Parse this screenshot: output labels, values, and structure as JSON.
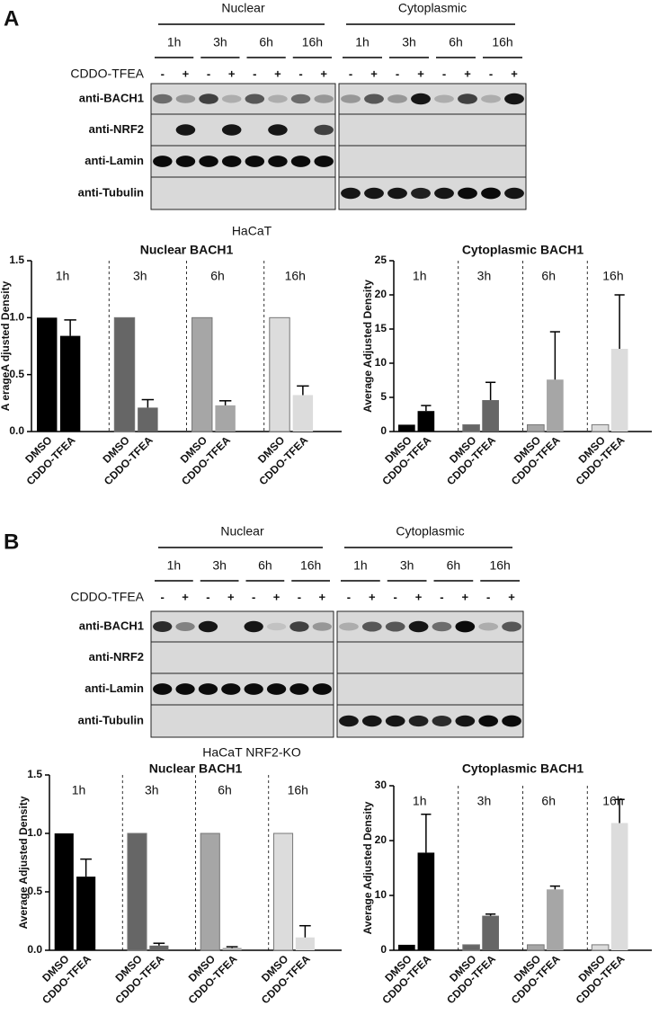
{
  "panels": [
    {
      "label": "A",
      "treatment": "CDDO-TFEA",
      "cell_line": "HaCaT",
      "sections": [
        {
          "name": "Nuclear",
          "times": [
            "1h",
            "3h",
            "6h",
            "16h"
          ]
        },
        {
          "name": "Cytoplasmic",
          "times": [
            "1h",
            "3h",
            "6h",
            "16h"
          ]
        }
      ],
      "signs": [
        "-",
        "+",
        "-",
        "+",
        "-",
        "+",
        "-",
        "+"
      ],
      "rows": [
        "anti-BACH1",
        "anti-NRF2",
        "anti-Lamin",
        "anti-Tubulin"
      ]
    },
    {
      "label": "B",
      "treatment": "CDDO-TFEA",
      "cell_line": "HaCaT NRF2-KO",
      "sections": [
        {
          "name": "Nuclear",
          "times": [
            "1h",
            "3h",
            "6h",
            "16h"
          ]
        },
        {
          "name": "Cytoplasmic",
          "times": [
            "1h",
            "3h",
            "6h",
            "16h"
          ]
        }
      ],
      "signs": [
        "-",
        "+",
        "-",
        "+",
        "-",
        "+",
        "-",
        "+"
      ],
      "rows": [
        "anti-BACH1",
        "anti-NRF2",
        "anti-Lamin",
        "anti-Tubulin"
      ]
    }
  ],
  "chart_data": [
    {
      "type": "bar",
      "title": "Nuclear BACH1",
      "y_label": "A erageA djusted Density",
      "groups": [
        "1h",
        "3h",
        "6h",
        "16h"
      ],
      "categories": [
        "DMSO",
        "CDDO-TFEA",
        "DMSO",
        "CDDO-TFEA",
        "DMSO",
        "CDDO-TFEA",
        "DMSO",
        "CDDO-TFEA"
      ],
      "values": [
        1,
        0.84,
        1,
        0.21,
        1,
        0.23,
        1,
        0.32
      ],
      "errors": [
        null,
        0.14,
        null,
        0.07,
        null,
        0.04,
        null,
        0.08
      ],
      "colors": [
        "#000000",
        "#000000",
        "#666666",
        "#666666",
        "#a6a6a6",
        "#a6a6a6",
        "#dcdcdc",
        "#dcdcdc"
      ],
      "ylim": [
        0,
        1.5
      ],
      "yticks": [
        {
          "value": 0,
          "label": "0.0"
        },
        0.5,
        {
          "value": 1,
          "label": "1.0"
        },
        1.5
      ]
    },
    {
      "type": "bar",
      "title": "Cytoplasmic BACH1",
      "y_label": "Average Adjusted Density",
      "groups": [
        "1h",
        "3h",
        "6h",
        "16h"
      ],
      "categories": [
        "DMSO",
        "CDDO-TFEA",
        "DMSO",
        "CDDO-TFEA",
        "DMSO",
        "CDDO-TFEA",
        "DMSO",
        "CDDO-TFEA"
      ],
      "values": [
        1,
        3,
        1,
        4.6,
        1,
        7.6,
        1,
        12.1
      ],
      "errors": [
        null,
        0.8,
        null,
        2.6,
        null,
        7.0,
        null,
        7.9
      ],
      "colors": [
        "#000000",
        "#000000",
        "#666666",
        "#666666",
        "#a6a6a6",
        "#a6a6a6",
        "#dcdcdc",
        "#dcdcdc"
      ],
      "ylim": [
        0,
        25
      ],
      "yticks": [
        0,
        5,
        10,
        15,
        20,
        25
      ]
    },
    {
      "type": "bar",
      "title": "Nuclear BACH1",
      "y_label": "Average Adjusted Density",
      "groups": [
        "1h",
        "3h",
        "6h",
        "16h"
      ],
      "categories": [
        "DMSO",
        "CDDO-TFEA",
        "DMSO",
        "CDDO-TFEA",
        "DMSO",
        "CDDO-TFEA",
        "DMSO",
        "CDDO-TFEA"
      ],
      "values": [
        1,
        0.63,
        1,
        0.04,
        1,
        0.02,
        1,
        0.11
      ],
      "errors": [
        null,
        0.15,
        null,
        0.02,
        null,
        0.01,
        null,
        0.1
      ],
      "colors": [
        "#000000",
        "#000000",
        "#666666",
        "#666666",
        "#a6a6a6",
        "#a6a6a6",
        "#dcdcdc",
        "#dcdcdc"
      ],
      "ylim": [
        0,
        1.5
      ],
      "yticks": [
        {
          "value": 0,
          "label": "0.0"
        },
        0.5,
        {
          "value": 1,
          "label": "1.0"
        },
        1.5
      ]
    },
    {
      "type": "bar",
      "title": "Cytoplasmic BACH1",
      "y_label": "Average Adjusted Density",
      "groups": [
        "1h",
        "3h",
        "6h",
        "16h"
      ],
      "categories": [
        "DMSO",
        "CDDO-TFEA",
        "DMSO",
        "CDDO-TFEA",
        "DMSO",
        "CDDO-TFEA",
        "DMSO",
        "CDDO-TFEA"
      ],
      "values": [
        1,
        17.8,
        1,
        6.3,
        1,
        11.1,
        1,
        23.2
      ],
      "errors": [
        null,
        7.0,
        null,
        0.3,
        null,
        0.6,
        null,
        4.3
      ],
      "colors": [
        "#000000",
        "#000000",
        "#666666",
        "#666666",
        "#a6a6a6",
        "#a6a6a6",
        "#dcdcdc",
        "#dcdcdc"
      ],
      "ylim": [
        0,
        30
      ],
      "yticks": [
        0,
        10,
        20,
        30
      ]
    }
  ]
}
